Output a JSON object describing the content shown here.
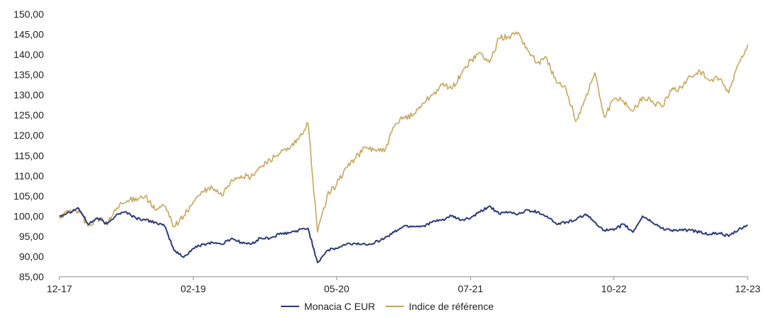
{
  "chart_data": {
    "type": "line",
    "title": "",
    "xlabel": "",
    "ylabel": "",
    "ylim": [
      85,
      150
    ],
    "yticks": [
      85,
      90,
      95,
      100,
      105,
      110,
      115,
      120,
      125,
      130,
      135,
      140,
      145,
      150
    ],
    "ytick_labels": [
      "85,00",
      "90,00",
      "95,00",
      "100,00",
      "105,00",
      "110,00",
      "115,00",
      "120,00",
      "125,00",
      "130,00",
      "135,00",
      "140,00",
      "145,00",
      "150,00"
    ],
    "xlim": [
      "2017-12",
      "2023-12"
    ],
    "xticks": [
      {
        "label": "12-17",
        "x": "2017-12"
      },
      {
        "label": "02-19",
        "x": "2019-02"
      },
      {
        "label": "05-20",
        "x": "2020-05"
      },
      {
        "label": "07-21",
        "x": "2021-07"
      },
      {
        "label": "10-22",
        "x": "2022-10"
      },
      {
        "label": "12-23",
        "x": "2023-12"
      }
    ],
    "grid": false,
    "legend_position": "bottom-center",
    "series": [
      {
        "name": "Monacia C EUR",
        "color": "#2b3a7a",
        "points": [
          [
            "2017-12",
            100.0
          ],
          [
            "2018-01",
            101.0
          ],
          [
            "2018-02",
            102.0
          ],
          [
            "2018-03",
            98.0
          ],
          [
            "2018-04",
            99.5
          ],
          [
            "2018-05",
            98.0
          ],
          [
            "2018-06",
            100.5
          ],
          [
            "2018-07",
            101.0
          ],
          [
            "2018-08",
            99.5
          ],
          [
            "2018-09",
            99.0
          ],
          [
            "2018-10",
            98.5
          ],
          [
            "2018-11",
            97.5
          ],
          [
            "2018-12",
            91.5
          ],
          [
            "2019-01",
            89.8
          ],
          [
            "2019-02",
            92.0
          ],
          [
            "2019-03",
            93.0
          ],
          [
            "2019-04",
            93.5
          ],
          [
            "2019-05",
            93.0
          ],
          [
            "2019-06",
            94.5
          ],
          [
            "2019-07",
            93.5
          ],
          [
            "2019-08",
            93.0
          ],
          [
            "2019-09",
            94.5
          ],
          [
            "2019-10",
            94.5
          ],
          [
            "2019-11",
            95.5
          ],
          [
            "2019-12",
            95.8
          ],
          [
            "2020-01",
            96.5
          ],
          [
            "2020-02",
            97.0
          ],
          [
            "2020-03",
            88.5
          ],
          [
            "2020-04",
            91.5
          ],
          [
            "2020-05",
            92.0
          ],
          [
            "2020-06",
            93.0
          ],
          [
            "2020-07",
            93.2
          ],
          [
            "2020-08",
            93.0
          ],
          [
            "2020-09",
            93.5
          ],
          [
            "2020-10",
            94.5
          ],
          [
            "2020-11",
            96.0
          ],
          [
            "2020-12",
            97.5
          ],
          [
            "2021-01",
            97.5
          ],
          [
            "2021-02",
            97.5
          ],
          [
            "2021-03",
            98.5
          ],
          [
            "2021-04",
            99.0
          ],
          [
            "2021-05",
            100.0
          ],
          [
            "2021-06",
            99.0
          ],
          [
            "2021-07",
            99.5
          ],
          [
            "2021-08",
            101.0
          ],
          [
            "2021-09",
            102.5
          ],
          [
            "2021-10",
            100.5
          ],
          [
            "2021-11",
            101.0
          ],
          [
            "2021-12",
            100.5
          ],
          [
            "2022-01",
            101.5
          ],
          [
            "2022-02",
            101.0
          ],
          [
            "2022-03",
            100.0
          ],
          [
            "2022-04",
            98.0
          ],
          [
            "2022-05",
            98.5
          ],
          [
            "2022-06",
            99.0
          ],
          [
            "2022-07",
            100.5
          ],
          [
            "2022-08",
            98.5
          ],
          [
            "2022-09",
            96.5
          ],
          [
            "2022-10",
            96.5
          ],
          [
            "2022-11",
            98.0
          ],
          [
            "2022-12",
            96.0
          ],
          [
            "2023-01",
            100.0
          ],
          [
            "2023-02",
            98.5
          ],
          [
            "2023-03",
            97.0
          ],
          [
            "2023-04",
            96.5
          ],
          [
            "2023-05",
            96.5
          ],
          [
            "2023-06",
            96.5
          ],
          [
            "2023-07",
            96.0
          ],
          [
            "2023-08",
            95.5
          ],
          [
            "2023-09",
            95.8
          ],
          [
            "2023-10",
            95.0
          ],
          [
            "2023-11",
            96.5
          ],
          [
            "2023-12",
            97.8
          ]
        ]
      },
      {
        "name": "Indice de référence",
        "color": "#c9a55c",
        "points": [
          [
            "2017-12",
            100.0
          ],
          [
            "2018-01",
            101.0
          ],
          [
            "2018-02",
            101.5
          ],
          [
            "2018-03",
            97.5
          ],
          [
            "2018-04",
            99.5
          ],
          [
            "2018-05",
            98.0
          ],
          [
            "2018-06",
            102.0
          ],
          [
            "2018-07",
            103.5
          ],
          [
            "2018-08",
            104.5
          ],
          [
            "2018-09",
            105.0
          ],
          [
            "2018-10",
            101.5
          ],
          [
            "2018-11",
            102.5
          ],
          [
            "2018-12",
            97.5
          ],
          [
            "2019-01",
            100.0
          ],
          [
            "2019-02",
            103.5
          ],
          [
            "2019-03",
            106.0
          ],
          [
            "2019-04",
            107.0
          ],
          [
            "2019-05",
            105.0
          ],
          [
            "2019-06",
            109.0
          ],
          [
            "2019-07",
            110.0
          ],
          [
            "2019-08",
            109.5
          ],
          [
            "2019-09",
            112.0
          ],
          [
            "2019-10",
            114.0
          ],
          [
            "2019-11",
            115.5
          ],
          [
            "2019-12",
            116.5
          ],
          [
            "2020-01",
            119.0
          ],
          [
            "2020-02",
            123.0
          ],
          [
            "2020-03",
            96.0
          ],
          [
            "2020-04",
            105.0
          ],
          [
            "2020-05",
            108.0
          ],
          [
            "2020-06",
            112.0
          ],
          [
            "2020-07",
            114.5
          ],
          [
            "2020-08",
            117.0
          ],
          [
            "2020-09",
            116.5
          ],
          [
            "2020-10",
            116.0
          ],
          [
            "2020-11",
            122.0
          ],
          [
            "2020-12",
            124.5
          ],
          [
            "2021-01",
            125.0
          ],
          [
            "2021-02",
            128.0
          ],
          [
            "2021-03",
            130.0
          ],
          [
            "2021-04",
            132.5
          ],
          [
            "2021-05",
            131.5
          ],
          [
            "2021-06",
            135.0
          ],
          [
            "2021-07",
            138.5
          ],
          [
            "2021-08",
            140.5
          ],
          [
            "2021-09",
            138.0
          ],
          [
            "2021-10",
            144.0
          ],
          [
            "2021-11",
            144.5
          ],
          [
            "2021-12",
            145.5
          ],
          [
            "2022-01",
            141.0
          ],
          [
            "2022-02",
            138.0
          ],
          [
            "2022-03",
            139.0
          ],
          [
            "2022-04",
            133.0
          ],
          [
            "2022-05",
            131.5
          ],
          [
            "2022-06",
            123.5
          ],
          [
            "2022-07",
            129.0
          ],
          [
            "2022-08",
            135.5
          ],
          [
            "2022-09",
            124.5
          ],
          [
            "2022-10",
            129.0
          ],
          [
            "2022-11",
            128.5
          ],
          [
            "2022-12",
            126.0
          ],
          [
            "2023-01",
            129.5
          ],
          [
            "2023-02",
            128.5
          ],
          [
            "2023-03",
            127.0
          ],
          [
            "2023-04",
            131.0
          ],
          [
            "2023-05",
            132.0
          ],
          [
            "2023-06",
            134.5
          ],
          [
            "2023-07",
            136.0
          ],
          [
            "2023-08",
            133.5
          ],
          [
            "2023-09",
            134.0
          ],
          [
            "2023-10",
            130.5
          ],
          [
            "2023-11",
            137.5
          ],
          [
            "2023-12",
            142.5
          ]
        ]
      }
    ]
  }
}
